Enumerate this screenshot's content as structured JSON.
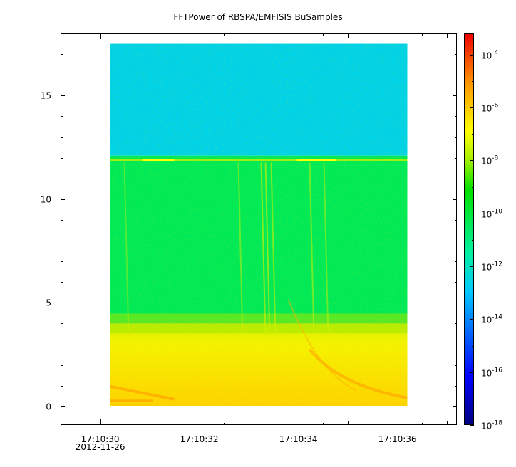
{
  "chart_data": {
    "type": "heatmap",
    "title": "FFTPower of RBSPA/EMFISIS  BuSamples",
    "xlabel": "",
    "ylabel": "",
    "x_ticks": [
      "17:10:30",
      "17:10:32",
      "17:10:34",
      "17:10:36"
    ],
    "x_date_label": "2012-11-26",
    "x_range_seconds": [
      29.2,
      37.2
    ],
    "data_x_range_seconds": [
      30.2,
      36.2
    ],
    "y_ticks": [
      0,
      5,
      10,
      15
    ],
    "ylim": [
      -0.9,
      18.0
    ],
    "data_y_range": [
      0,
      17.5
    ],
    "colorbar": {
      "scale": "log",
      "range_exponents": [
        -18,
        -3.2
      ],
      "tick_exponents": [
        -18,
        -16,
        -14,
        -12,
        -10,
        -8,
        -6,
        -4
      ],
      "tick_labels": [
        "10",
        "10",
        "10",
        "10",
        "10",
        "10",
        "10",
        "10"
      ],
      "tick_exponent_labels": [
        "-18",
        "-16",
        "-14",
        "-12",
        "-10",
        "-8",
        "-6",
        "-4"
      ]
    },
    "bands": [
      {
        "y_from": 12.1,
        "y_to": 17.5,
        "power_exponent": -12.6
      },
      {
        "y_from": 4.0,
        "y_to": 12.1,
        "power_exponent": -10.4
      },
      {
        "y_from": 0,
        "y_to": 4.0,
        "power_exponent": -8.7
      }
    ],
    "line_at_y": 11.9,
    "grid": false
  }
}
